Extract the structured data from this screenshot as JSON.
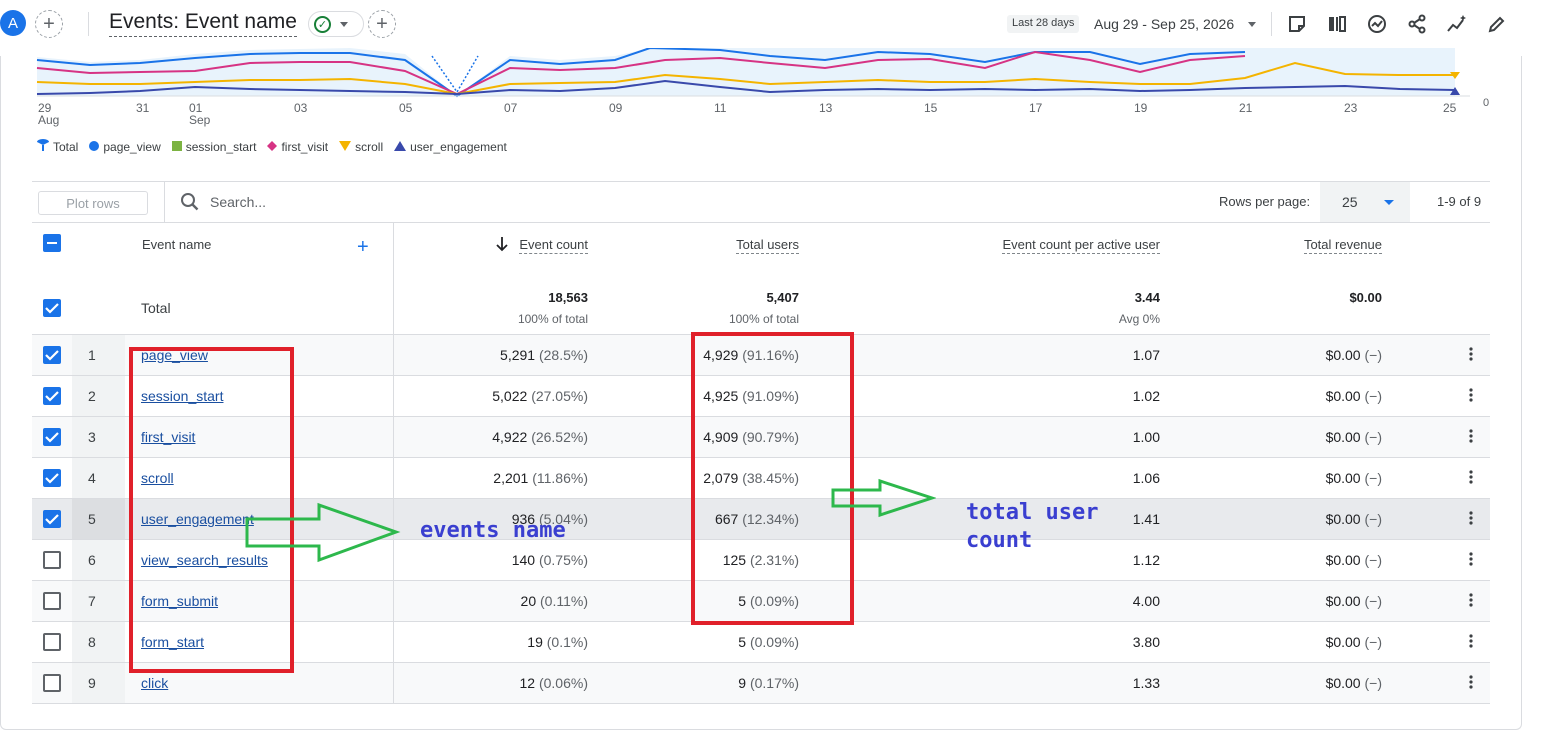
{
  "header": {
    "avatar_letter": "A",
    "title": "Events: Event name",
    "range_chip": "Last 28 days",
    "range_text": "Aug 29 - Sep 25, 2026"
  },
  "chart": {
    "x_ticks": [
      "29",
      "31",
      "01",
      "03",
      "05",
      "07",
      "09",
      "11",
      "13",
      "15",
      "17",
      "19",
      "21",
      "23",
      "25"
    ],
    "x_subticks": {
      "29": "Aug",
      "01": "Sep"
    },
    "y_min_label": "0",
    "legend": [
      {
        "label": "Total",
        "color": "#1a73e8",
        "marker": "pin"
      },
      {
        "label": "page_view",
        "color": "#1a73e8",
        "marker": "circle"
      },
      {
        "label": "session_start",
        "color": "#7cb342",
        "marker": "square"
      },
      {
        "label": "first_visit",
        "color": "#d63384",
        "marker": "diamond"
      },
      {
        "label": "scroll",
        "color": "#f4b400",
        "marker": "triangle-down"
      },
      {
        "label": "user_engagement",
        "color": "#3949ab",
        "marker": "triangle-up"
      }
    ]
  },
  "toolbar": {
    "plot_rows": "Plot rows",
    "search_placeholder": "Search...",
    "rows_per_page_label": "Rows per page:",
    "rows_per_page_value": "25",
    "pager": "1-9 of 9"
  },
  "table": {
    "headers": {
      "event_name": "Event name",
      "event_count": "Event count",
      "total_users": "Total users",
      "per_user": "Event count per active user",
      "revenue": "Total revenue"
    },
    "total": {
      "label": "Total",
      "event_count": "18,563",
      "event_count_sub": "100% of total",
      "total_users": "5,407",
      "total_users_sub": "100% of total",
      "per_user": "3.44",
      "per_user_sub": "Avg 0%",
      "revenue": "$0.00"
    },
    "rows": [
      {
        "idx": "1",
        "name": "page_view",
        "count": "5,291",
        "count_pct": "(28.5%)",
        "users": "4,929",
        "users_pct": "(91.16%)",
        "per_user": "1.07",
        "revenue": "$0.00",
        "revenue_pct": "(−)",
        "checked": true
      },
      {
        "idx": "2",
        "name": "session_start",
        "count": "5,022",
        "count_pct": "(27.05%)",
        "users": "4,925",
        "users_pct": "(91.09%)",
        "per_user": "1.02",
        "revenue": "$0.00",
        "revenue_pct": "(−)",
        "checked": true
      },
      {
        "idx": "3",
        "name": "first_visit",
        "count": "4,922",
        "count_pct": "(26.52%)",
        "users": "4,909",
        "users_pct": "(90.79%)",
        "per_user": "1.00",
        "revenue": "$0.00",
        "revenue_pct": "(−)",
        "checked": true
      },
      {
        "idx": "4",
        "name": "scroll",
        "count": "2,201",
        "count_pct": "(11.86%)",
        "users": "2,079",
        "users_pct": "(38.45%)",
        "per_user": "1.06",
        "revenue": "$0.00",
        "revenue_pct": "(−)",
        "checked": true
      },
      {
        "idx": "5",
        "name": "user_engagement",
        "count": "936",
        "count_pct": "(5.04%)",
        "users": "667",
        "users_pct": "(12.34%)",
        "per_user": "1.41",
        "revenue": "$0.00",
        "revenue_pct": "(−)",
        "checked": true
      },
      {
        "idx": "6",
        "name": "view_search_results",
        "count": "140",
        "count_pct": "(0.75%)",
        "users": "125",
        "users_pct": "(2.31%)",
        "per_user": "1.12",
        "revenue": "$0.00",
        "revenue_pct": "(−)",
        "checked": false
      },
      {
        "idx": "7",
        "name": "form_submit",
        "count": "20",
        "count_pct": "(0.11%)",
        "users": "5",
        "users_pct": "(0.09%)",
        "per_user": "4.00",
        "revenue": "$0.00",
        "revenue_pct": "(−)",
        "checked": false
      },
      {
        "idx": "8",
        "name": "form_start",
        "count": "19",
        "count_pct": "(0.1%)",
        "users": "5",
        "users_pct": "(0.09%)",
        "per_user": "3.80",
        "revenue": "$0.00",
        "revenue_pct": "(−)",
        "checked": false
      },
      {
        "idx": "9",
        "name": "click",
        "count": "12",
        "count_pct": "(0.06%)",
        "users": "9",
        "users_pct": "(0.17%)",
        "per_user": "1.33",
        "revenue": "$0.00",
        "revenue_pct": "(−)",
        "checked": false
      }
    ]
  },
  "annotations": {
    "events_label": "events name",
    "users_label_line1": "total user",
    "users_label_line2": "count",
    "box_color": "#e0202a",
    "arrow_color": "#2db84c"
  }
}
